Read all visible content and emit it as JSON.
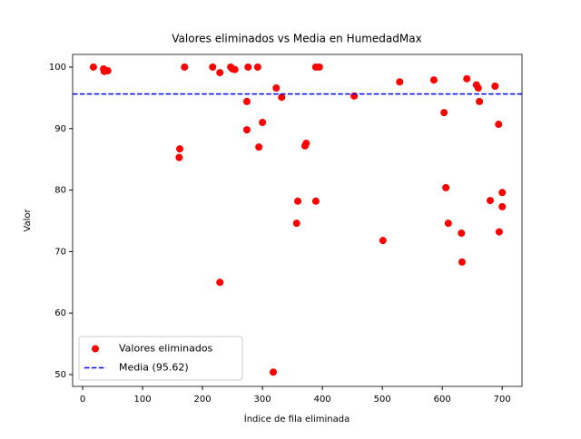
{
  "chart_data": {
    "type": "scatter",
    "title": "Valores eliminados vs Media en HumedadMax",
    "x_label": "Índice de fila eliminada",
    "y_label": "Valor",
    "xlim": [
      -16.7,
      733
    ],
    "ylim": [
      48.08,
      102.06
    ],
    "xticks": [
      0,
      100,
      200,
      300,
      400,
      500,
      600,
      700
    ],
    "yticks": [
      50,
      60,
      70,
      80,
      90,
      100
    ],
    "legend": "lower left",
    "series": [
      {
        "name": "Valores eliminados",
        "color": "#ff0000",
        "x": [
          18,
          35,
          36,
          42,
          161,
          162,
          170,
          217,
          229,
          229,
          247,
          250,
          254,
          274,
          274,
          276,
          292,
          294,
          300,
          318,
          323,
          332,
          357,
          359,
          371,
          373,
          389,
          389,
          395,
          453,
          501,
          529,
          586,
          603,
          606,
          610,
          632,
          633,
          641,
          657,
          660,
          662,
          680,
          688,
          694,
          695,
          700,
          700
        ],
        "values": [
          100,
          99.7,
          99.3,
          99.4,
          85.3,
          86.7,
          100,
          100,
          65.0,
          99.1,
          100,
          99.7,
          99.6,
          89.8,
          94.4,
          100,
          100,
          87.0,
          91.0,
          50.4,
          96.6,
          95.1,
          74.6,
          78.2,
          87.2,
          87.6,
          78.2,
          100,
          100,
          95.3,
          71.8,
          97.6,
          97.9,
          92.6,
          80.4,
          74.6,
          73.0,
          68.3,
          98.1,
          97.1,
          96.6,
          94.4,
          78.3,
          96.9,
          90.7,
          73.2,
          79.6,
          77.3
        ]
      },
      {
        "name": "Media (95.62)",
        "type": "hline",
        "value": 95.62,
        "color": "#0000ff",
        "linestyle": "dashed"
      }
    ]
  }
}
